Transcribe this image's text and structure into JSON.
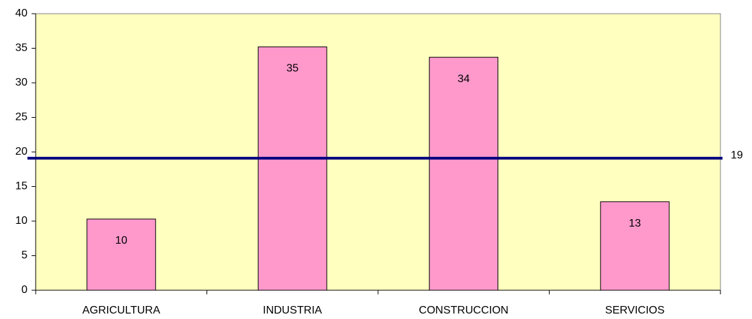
{
  "chart_data": {
    "type": "bar",
    "categories": [
      "AGRICULTURA",
      "INDUSTRIA",
      "CONSTRUCCION",
      "SERVICIOS"
    ],
    "values": [
      10.3,
      35.2,
      33.7,
      12.8
    ],
    "value_labels": [
      "10",
      "35",
      "34",
      "13"
    ],
    "color": "#ff99cc",
    "plot_background": "#ffffc0",
    "reference_line": {
      "value": 19.1,
      "label": "19",
      "color": "#000080"
    },
    "ylim": [
      0,
      40
    ],
    "yticks": [
      0,
      5,
      10,
      15,
      20,
      25,
      30,
      35,
      40
    ]
  }
}
